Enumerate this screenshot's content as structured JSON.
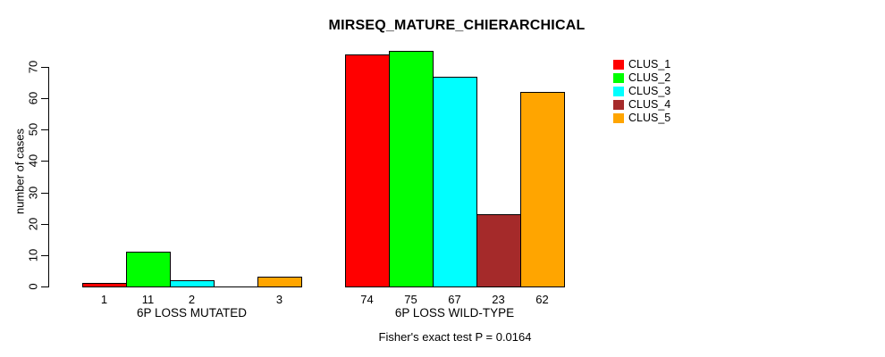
{
  "chart_data": {
    "type": "bar",
    "title": "MIRSEQ_MATURE_CHIERARCHICAL",
    "ylabel": "number of cases",
    "xlabel": "",
    "ylim": [
      0,
      75
    ],
    "yticks": [
      0,
      10,
      20,
      30,
      40,
      50,
      60,
      70
    ],
    "grid": false,
    "legend_position": "top-right",
    "annotation": "Fisher's exact test P = 0.0164",
    "categories": [
      "6P LOSS MUTATED",
      "6P LOSS WILD-TYPE"
    ],
    "series": [
      {
        "name": "CLUS_1",
        "color": "#ff0000",
        "values": [
          1,
          74
        ]
      },
      {
        "name": "CLUS_2",
        "color": "#00ff00",
        "values": [
          11,
          75
        ]
      },
      {
        "name": "CLUS_3",
        "color": "#00ffff",
        "values": [
          2,
          67
        ]
      },
      {
        "name": "CLUS_4",
        "color": "#a52a2a",
        "values": [
          0,
          23
        ]
      },
      {
        "name": "CLUS_5",
        "color": "#ffa500",
        "values": [
          3,
          62
        ]
      }
    ]
  }
}
